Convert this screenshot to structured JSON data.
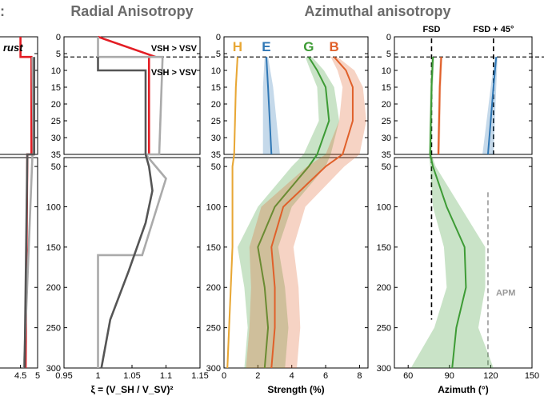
{
  "figure": {
    "titles": {
      "left_fragment": ":",
      "radial": "Radial Anisotropy",
      "azimuthal": "Azimuthal anisotropy"
    }
  },
  "chart_data": [
    {
      "type": "line",
      "panel": "crust-velocity (cropped)",
      "annotations": [
        "rust"
      ],
      "x_ticks": [
        "4.5",
        "5"
      ],
      "y_ticks_top": [
        0,
        5,
        10,
        15,
        20,
        25,
        30,
        35
      ],
      "y_ticks_bottom": [
        50,
        100,
        150,
        200,
        250,
        300
      ],
      "ylim_top": [
        0,
        35
      ],
      "ylim_bottom": [
        35,
        300
      ],
      "series": [
        {
          "color": "#e31d24",
          "depth": [
            0,
            6,
            6,
            35,
            35,
            300
          ],
          "x": [
            4.5,
            4.5,
            4.82,
            4.82,
            4.7,
            4.65
          ]
        },
        {
          "color": "#aaaaaa",
          "depth": [
            6,
            35,
            35,
            300
          ],
          "x": [
            4.85,
            4.88,
            4.85,
            4.6
          ]
        },
        {
          "color": "#555555",
          "depth": [
            6,
            35,
            35,
            300
          ],
          "x": [
            4.9,
            4.9,
            4.7,
            4.62
          ]
        }
      ]
    },
    {
      "type": "line",
      "panel": "radial",
      "title": "Radial Anisotropy",
      "xlabel": "ξ = (V_SH / V_SV)²",
      "xlim": [
        0.95,
        1.15
      ],
      "x_ticks": [
        "0.95",
        "1",
        "1.05",
        "1.1",
        "1.15"
      ],
      "y_ticks_top": [
        0,
        5,
        10,
        15,
        20,
        25,
        30,
        35
      ],
      "y_ticks_bottom": [
        50,
        100,
        150,
        200,
        250,
        300
      ],
      "ylim_top": [
        0,
        35
      ],
      "ylim_bottom": [
        35,
        300
      ],
      "annotations": [
        "VSH > VSV",
        "VSH > VSV"
      ],
      "reference_line_depth": 6,
      "series": [
        {
          "color": "#e31d24",
          "depth": [
            0,
            6,
            6,
            35
          ],
          "x": [
            1.0,
            1.085,
            1.075,
            1.075
          ]
        },
        {
          "color": "#aaaaaa",
          "depth": [
            0,
            6,
            6,
            35,
            35,
            65,
            160,
            160,
            300
          ],
          "x": [
            1.0,
            1.0,
            1.095,
            1.09,
            1.07,
            1.1,
            1.065,
            1.0,
            1.0
          ]
        },
        {
          "color": "#555555",
          "depth": [
            6,
            10,
            10,
            35,
            35,
            50,
            80,
            120,
            180,
            240,
            300
          ],
          "x": [
            1.0,
            1.0,
            1.07,
            1.07,
            1.07,
            1.075,
            1.08,
            1.07,
            1.045,
            1.018,
            1.005
          ]
        }
      ]
    },
    {
      "type": "area",
      "panel": "strength",
      "title": "Azimuthal anisotropy",
      "xlabel": "Strength (%)",
      "xlim": [
        0,
        8.5
      ],
      "x_ticks": [
        "0",
        "2",
        "4",
        "6",
        "8"
      ],
      "y_ticks_top": [
        0,
        5,
        10,
        15,
        20,
        25,
        30,
        35
      ],
      "y_ticks_bottom": [
        50,
        100,
        150,
        200,
        250,
        300
      ],
      "ylim_top": [
        0,
        35
      ],
      "ylim_bottom": [
        35,
        300
      ],
      "reference_line_depth": 6,
      "series": [
        {
          "name": "H",
          "color": "#e8a735",
          "depth": [
            6,
            15,
            35,
            50,
            100,
            150,
            200,
            250,
            300
          ],
          "x": [
            0.8,
            0.7,
            0.6,
            0.5,
            0.5,
            0.5,
            0.4,
            0.3,
            0.2
          ],
          "spread": [
            0.05,
            0.05,
            0.05,
            0.05,
            0.05,
            0.05,
            0.05,
            0.05,
            0.05
          ]
        },
        {
          "name": "E",
          "color": "#2f77b5",
          "depth": [
            6,
            15,
            25,
            35
          ],
          "x": [
            2.5,
            2.6,
            2.7,
            2.8
          ],
          "spread": [
            0.1,
            0.3,
            0.4,
            0.5
          ]
        },
        {
          "name": "G",
          "color": "#3d9b35",
          "depth": [
            6,
            10,
            15,
            25,
            35,
            50,
            100,
            150,
            200,
            250,
            300
          ],
          "x": [
            5.0,
            5.5,
            6.0,
            6.2,
            5.5,
            5.0,
            3.0,
            2.0,
            2.4,
            2.6,
            2.4
          ],
          "spread": [
            0.2,
            0.4,
            0.5,
            0.6,
            0.8,
            1.0,
            1.0,
            1.2,
            1.2,
            1.2,
            1.2
          ]
        },
        {
          "name": "B",
          "color": "#e0602a",
          "depth": [
            6,
            10,
            15,
            25,
            35,
            50,
            100,
            150,
            200,
            250,
            300
          ],
          "x": [
            6.5,
            7.2,
            7.6,
            7.6,
            7.0,
            6.0,
            3.5,
            2.8,
            3.0,
            3.0,
            2.8
          ],
          "spread": [
            0.2,
            0.5,
            0.6,
            0.8,
            1.0,
            1.1,
            1.3,
            1.3,
            1.4,
            1.5,
            1.5
          ]
        }
      ]
    },
    {
      "type": "area",
      "panel": "azimuth",
      "xlabel": "Azimuth (°)",
      "xlim": [
        50,
        150
      ],
      "x_ticks": [
        "60",
        "90",
        "120",
        "150"
      ],
      "y_ticks_top": [
        0,
        5,
        10,
        15,
        20,
        25,
        30,
        35
      ],
      "y_ticks_bottom": [
        50,
        100,
        150,
        200,
        250,
        300
      ],
      "ylim_top": [
        0,
        35
      ],
      "ylim_bottom": [
        35,
        300
      ],
      "reference_line_depth": 6,
      "vlines": [
        {
          "label": "FSD",
          "x": 77,
          "depth_range": [
            0,
            240
          ],
          "color": "#000000"
        },
        {
          "label": "FSD + 45°",
          "x": 122,
          "depth_range": [
            0,
            35
          ],
          "color": "#000000"
        },
        {
          "label": "APM",
          "x": 118,
          "depth_range": [
            80,
            300
          ],
          "color": "#999999"
        }
      ],
      "series": [
        {
          "name": "G",
          "color": "#3d9b35",
          "depth": [
            6,
            15,
            35,
            50,
            100,
            150,
            200,
            250,
            300
          ],
          "x": [
            78,
            77,
            76,
            78,
            88,
            101,
            102,
            95,
            92
          ],
          "spread": [
            1,
            1,
            1,
            2,
            10,
            15,
            14,
            16,
            30
          ]
        },
        {
          "name": "B",
          "color": "#e0602a",
          "depth": [
            6,
            15,
            35
          ],
          "x": [
            84,
            83,
            82
          ],
          "spread": [
            1,
            1,
            1
          ]
        },
        {
          "name": "E",
          "color": "#2f77b5",
          "depth": [
            6,
            15,
            25,
            35
          ],
          "x": [
            124,
            122,
            120,
            118
          ],
          "spread": [
            1,
            2,
            3,
            4
          ]
        }
      ]
    }
  ]
}
